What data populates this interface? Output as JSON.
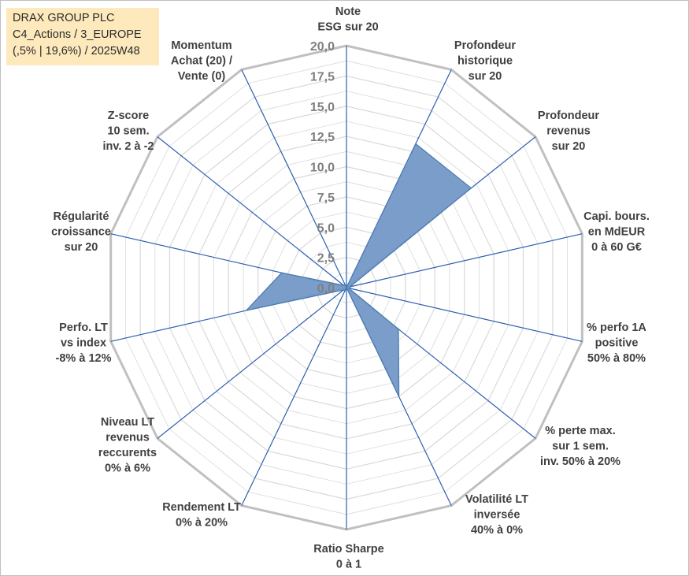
{
  "title_box": {
    "line1": "DRAX GROUP PLC",
    "line2": "C4_Actions / 3_EUROPE",
    "line3": "(,5% | 19,6%) / 2025W48",
    "background": "#fde9bc"
  },
  "chart_data": {
    "type": "radar",
    "rmax": 20,
    "ticks": [
      "0,0",
      "2,5",
      "5,0",
      "7,5",
      "10,0",
      "12,5",
      "15,0",
      "17,5",
      "20,0"
    ],
    "axes": [
      {
        "label": [
          "Note",
          "ESG sur 20"
        ],
        "value": 0
      },
      {
        "label": [
          "Profondeur",
          "historique",
          "sur 20"
        ],
        "value": 13.2
      },
      {
        "label": [
          "Profondeur",
          "revenus",
          "sur 20"
        ],
        "value": 13.2
      },
      {
        "label": [
          "Capi. bours.",
          "en MdEUR",
          "0 à 60 G€"
        ],
        "value": 0.3
      },
      {
        "label": [
          "% perfo 1A",
          "positive",
          "50% à 80%"
        ],
        "value": 0.2
      },
      {
        "label": [
          "% perte max.",
          "sur 1 sem.",
          "inv. 50% à 20%"
        ],
        "value": 5.5
      },
      {
        "label": [
          "Volatilité LT",
          "inversée",
          "40% à 0%"
        ],
        "value": 10.0
      },
      {
        "label": [
          "Ratio Sharpe",
          "0 à 1"
        ],
        "value": 0
      },
      {
        "label": [
          "Rendement LT",
          "0% à 20%"
        ],
        "value": 0.3
      },
      {
        "label": [
          "Niveau LT",
          "revenus",
          "reccurents",
          "0% à 6%"
        ],
        "value": 0.3
      },
      {
        "label": [
          "Perfo. LT",
          "vs index",
          "-8% à 12%"
        ],
        "value": 8.5
      },
      {
        "label": [
          "Régularité",
          "croissance",
          "sur 20"
        ],
        "value": 5.5
      },
      {
        "label": [
          "Z-score",
          "10 sem.",
          "inv. 2 à -2"
        ],
        "value": 0.3
      },
      {
        "label": [
          "Momentum",
          "Achat (20) /",
          "Vente (0)"
        ],
        "value": 0.3
      }
    ],
    "colors": {
      "fill": "#7399c6",
      "stroke": "#4a77b0",
      "spoke": "#2e5fb0",
      "grid_outer": "#c0c0c0",
      "grid_inner": "#d9d9d9",
      "tick_text": "#7f7f7f",
      "label_text": "#404040"
    }
  }
}
